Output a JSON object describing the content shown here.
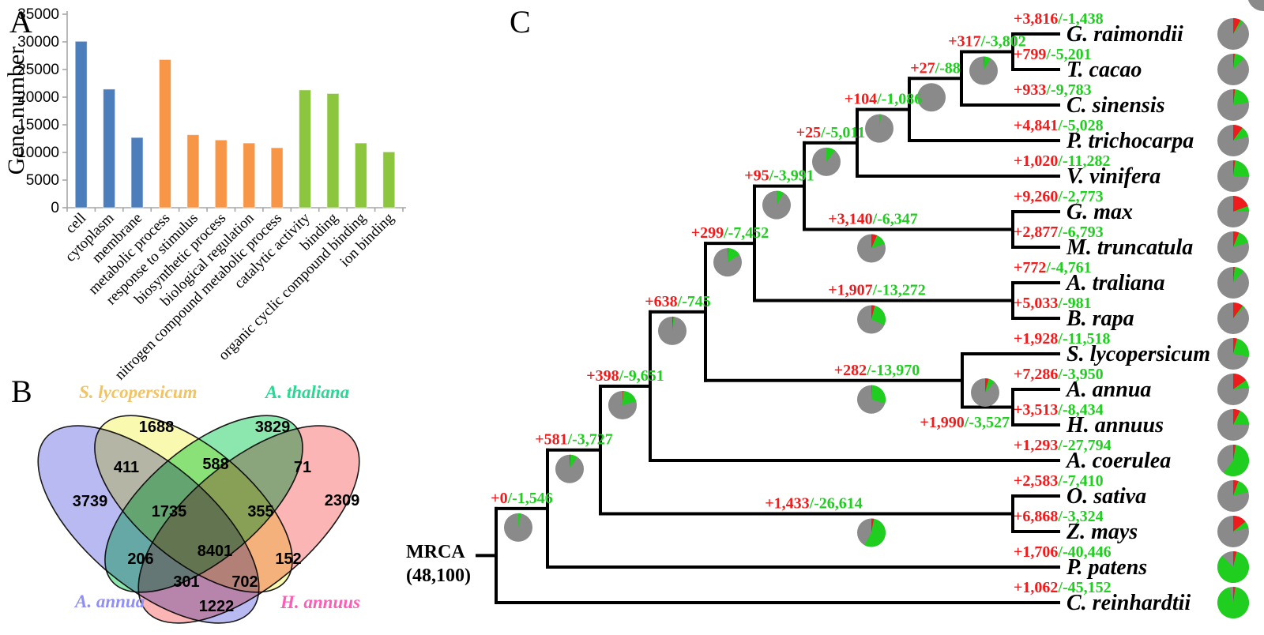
{
  "panels": {
    "a": "A",
    "b": "B",
    "c": "C"
  },
  "chart_data": {
    "type": "bar",
    "title": "",
    "xlabel": "",
    "ylabel": "Gene number",
    "ylim": [
      0,
      35000
    ],
    "ytick_step": 5000,
    "legend": "none",
    "grid": false,
    "categories": [
      "cell",
      "cytoplasm",
      "membrane",
      "metabolic process",
      "response to stimulus",
      "biosynthetic process",
      "biological regulation",
      "nitrogen compound metabolic process",
      "catalytic activity",
      "binding",
      "organic cyclic compound binding",
      "ion binding"
    ],
    "values": [
      30100,
      21450,
      12700,
      26800,
      13200,
      12250,
      11700,
      10850,
      21300,
      20650,
      11700,
      10100
    ],
    "group_of_bar": [
      "cellular_component",
      "cellular_component",
      "cellular_component",
      "biological_process",
      "biological_process",
      "biological_process",
      "biological_process",
      "biological_process",
      "molecular_function",
      "molecular_function",
      "molecular_function",
      "molecular_function"
    ],
    "group_colors": {
      "cellular_component": "#4d7ebc",
      "biological_process": "#f79646",
      "molecular_function": "#8cc63f"
    }
  },
  "venn": {
    "sets": [
      {
        "id": "slyc",
        "name": "S. lycopersicum",
        "label_color": "#f2c363",
        "fill": "#f6f67e"
      },
      {
        "id": "athal",
        "name": "A. thaliana",
        "label_color": "#2dd694",
        "fill": "#46d87c"
      },
      {
        "id": "aann",
        "name": "A. annua",
        "label_color": "#8f8ff6",
        "fill": "#9090ea"
      },
      {
        "id": "hann",
        "name": "H. annuus",
        "label_color": "#fa5fb5",
        "fill": "#f98888"
      }
    ],
    "regions": [
      {
        "id": "only_slyc",
        "sets": [
          "S. lycopersicum"
        ],
        "value": "1688"
      },
      {
        "id": "only_athal",
        "sets": [
          "A. thaliana"
        ],
        "value": "3829"
      },
      {
        "id": "only_aann",
        "sets": [
          "A. annua"
        ],
        "value": "3739"
      },
      {
        "id": "only_hann",
        "sets": [
          "H. annuus"
        ],
        "value": "2309"
      },
      {
        "id": "aann_slyc",
        "sets": [
          "A. annua",
          "S. lycopersicum"
        ],
        "value": "411"
      },
      {
        "id": "slyc_athal",
        "sets": [
          "S. lycopersicum",
          "A. thaliana"
        ],
        "value": "588"
      },
      {
        "id": "athal_hann",
        "sets": [
          "A. thaliana",
          "H. annuus"
        ],
        "value": "71"
      },
      {
        "id": "aann_athal",
        "sets": [
          "A. annua",
          "A. thaliana"
        ],
        "value": "206"
      },
      {
        "id": "slyc_hann",
        "sets": [
          "S. lycopersicum",
          "H. annuus"
        ],
        "value": "152"
      },
      {
        "id": "aann_hann",
        "sets": [
          "A. annua",
          "H. annuus"
        ],
        "value": "1222"
      },
      {
        "id": "aann_slyc_athal",
        "sets": [
          "A. annua",
          "S. lycopersicum",
          "A. thaliana"
        ],
        "value": "1735"
      },
      {
        "id": "slyc_athal_hann",
        "sets": [
          "S. lycopersicum",
          "A. thaliana",
          "H. annuus"
        ],
        "value": "355"
      },
      {
        "id": "aann_athal_hann",
        "sets": [
          "A. annua",
          "A. thaliana",
          "H. annuus"
        ],
        "value": "301"
      },
      {
        "id": "aann_slyc_hann",
        "sets": [
          "A. annua",
          "S. lycopersicum",
          "H. annuus"
        ],
        "value": "702"
      },
      {
        "id": "all_four",
        "sets": [
          "A. annua",
          "S. lycopersicum",
          "A. thaliana",
          "H. annuus"
        ],
        "value": "8401"
      }
    ]
  },
  "tree": {
    "mrca_label": "MRCA",
    "mrca_count": "(48,100)",
    "total_families": 48100,
    "colors": {
      "gain_text": "#ee1c1c",
      "loss_text": "#1fce1f",
      "pie_gained": "#ee1c1c",
      "pie_lost": "#1fce1f",
      "pie_conserved": "#8a8a8a"
    },
    "root": {
      "id": "root",
      "children": [
        {
          "id": "A",
          "gain": "+0",
          "loss": "-1,546",
          "children": [
            {
              "id": "B",
              "gain": "+581",
              "loss": "-3,727",
              "children": [
                {
                  "id": "C",
                  "gain": "+398",
                  "loss": "-9,651",
                  "children": [
                    {
                      "id": "D",
                      "gain": "+638",
                      "loss": "-745",
                      "children": [
                        {
                          "id": "E",
                          "gain": "+299",
                          "loss": "-7,452",
                          "children": [
                            {
                              "id": "F",
                              "gain": "+95",
                              "loss": "-3,991",
                              "children": [
                                {
                                  "id": "G",
                                  "gain": "+25",
                                  "loss": "-5,011",
                                  "children": [
                                    {
                                      "id": "H",
                                      "gain": "+104",
                                      "loss": "-1,086",
                                      "children": [
                                        {
                                          "id": "I",
                                          "gain": "+27",
                                          "loss": "-88",
                                          "children": [
                                            {
                                              "id": "J",
                                              "gain": "+317",
                                              "loss": "-3,802",
                                              "children": [
                                                {
                                                  "leaf": "G. raimondii",
                                                  "gain": "+3,816",
                                                  "loss": "-1,438"
                                                },
                                                {
                                                  "leaf": "T. cacao",
                                                  "gain": "+799",
                                                  "loss": "-5,201"
                                                }
                                              ]
                                            },
                                            {
                                              "leaf": "C. sinensis",
                                              "gain": "+933",
                                              "loss": "-9,783"
                                            }
                                          ]
                                        },
                                        {
                                          "leaf": "P. trichocarpa",
                                          "gain": "+4,841",
                                          "loss": "-5,028"
                                        }
                                      ]
                                    },
                                    {
                                      "leaf": "V. vinifera",
                                      "gain": "+1,020",
                                      "loss": "-11,282"
                                    }
                                  ]
                                },
                                {
                                  "id": "K",
                                  "gain": "+3,140",
                                  "loss": "-6,347",
                                  "children": [
                                    {
                                      "leaf": "G. max",
                                      "gain": "+9,260",
                                      "loss": "-2,773"
                                    },
                                    {
                                      "leaf": "M. truncatula",
                                      "gain": "+2,877",
                                      "loss": "-6,793"
                                    }
                                  ]
                                }
                              ]
                            },
                            {
                              "id": "L",
                              "gain": "+1,907",
                              "loss": "-13,272",
                              "children": [
                                {
                                  "leaf": "A. traliana",
                                  "gain": "+772",
                                  "loss": "-4,761"
                                },
                                {
                                  "leaf": "B. rapa",
                                  "gain": "+5,033",
                                  "loss": "-981"
                                }
                              ]
                            }
                          ]
                        },
                        {
                          "id": "M",
                          "gain": "+282",
                          "loss": "-13,970",
                          "children": [
                            {
                              "leaf": "S. lycopersicum",
                              "gain": "+1,928",
                              "loss": "-11,518"
                            },
                            {
                              "id": "N",
                              "gain": "+1,990",
                              "loss": "-3,527",
                              "children": [
                                {
                                  "leaf": "A. annua",
                                  "gain": "+7,286",
                                  "loss": "-3,950"
                                },
                                {
                                  "leaf": "H. annuus",
                                  "gain": "+3,513",
                                  "loss": "-8,434"
                                }
                              ]
                            }
                          ]
                        }
                      ]
                    },
                    {
                      "leaf": "A. coerulea",
                      "gain": "+1,293",
                      "loss": "-27,794"
                    }
                  ]
                },
                {
                  "id": "O",
                  "gain": "+1,433",
                  "loss": "-26,614",
                  "children": [
                    {
                      "leaf": "O. sativa",
                      "gain": "+2,583",
                      "loss": "-7,410"
                    },
                    {
                      "leaf": "Z. mays",
                      "gain": "+6,868",
                      "loss": "-3,324"
                    }
                  ]
                }
              ]
            },
            {
              "leaf": "P. patens",
              "gain": "+1,706",
              "loss": "-40,446"
            }
          ]
        },
        {
          "leaf": "C. reinhardtii",
          "gain": "+1,062",
          "loss": "-45,152"
        }
      ]
    }
  }
}
